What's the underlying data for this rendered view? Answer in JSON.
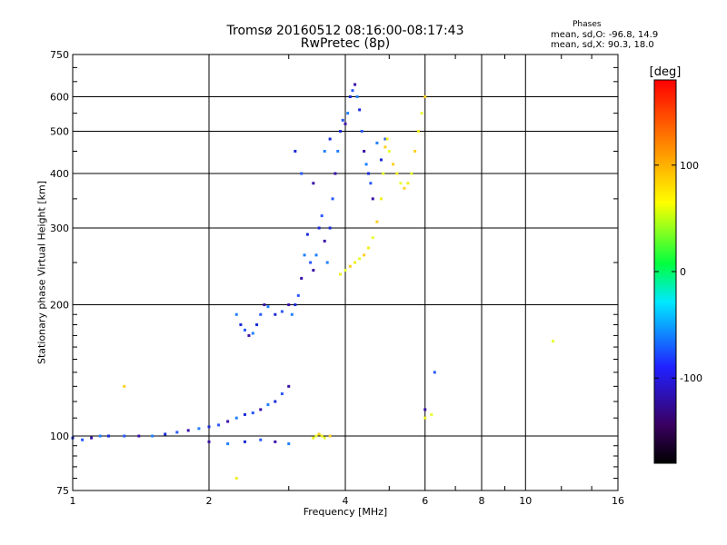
{
  "chart_data": {
    "type": "scatter",
    "title": "Tromsø 20160512 08:16:00-08:17:43",
    "subtitle": "RwPretec (8p)",
    "xlabel": "Frequency [MHz]",
    "ylabel": "Stationary phase Virtual Height [km]",
    "x_scale": "log",
    "y_scale": "log",
    "xlim": [
      1,
      16
    ],
    "ylim": [
      75,
      750
    ],
    "x_ticks": [
      1,
      2,
      4,
      6,
      8,
      10,
      16
    ],
    "y_ticks": [
      75,
      100,
      200,
      300,
      400,
      500,
      600,
      750
    ],
    "grid": true,
    "phase_stats": {
      "title": "Phases",
      "o_line": "mean, sd,O: -96.8, 14.9",
      "x_line": "mean, sd,X: 90.3, 18.0"
    },
    "colorbar": {
      "label": "[deg]",
      "min": -180,
      "max": 180,
      "ticks": [
        100,
        0,
        -100
      ]
    },
    "series": [
      {
        "name": "O",
        "points": [
          [
            1.0,
            99
          ],
          [
            1.05,
            98
          ],
          [
            1.1,
            99
          ],
          [
            1.15,
            100
          ],
          [
            1.2,
            100
          ],
          [
            1.3,
            100
          ],
          [
            1.4,
            100
          ],
          [
            1.5,
            100
          ],
          [
            1.6,
            101
          ],
          [
            1.7,
            102
          ],
          [
            1.8,
            103
          ],
          [
            1.9,
            104
          ],
          [
            2.0,
            105
          ],
          [
            2.1,
            106
          ],
          [
            2.2,
            108
          ],
          [
            2.3,
            110
          ],
          [
            2.4,
            112
          ],
          [
            2.5,
            113
          ],
          [
            2.6,
            115
          ],
          [
            2.7,
            118
          ],
          [
            2.8,
            120
          ],
          [
            2.9,
            125
          ],
          [
            3.0,
            130
          ],
          [
            2.3,
            190
          ],
          [
            2.35,
            180
          ],
          [
            2.4,
            175
          ],
          [
            2.45,
            170
          ],
          [
            2.5,
            172
          ],
          [
            2.55,
            180
          ],
          [
            2.6,
            190
          ],
          [
            2.65,
            200
          ],
          [
            2.7,
            198
          ],
          [
            2.8,
            190
          ],
          [
            2.9,
            193
          ],
          [
            3.0,
            200
          ],
          [
            3.05,
            190
          ],
          [
            3.1,
            200
          ],
          [
            3.15,
            210
          ],
          [
            3.2,
            230
          ],
          [
            3.25,
            260
          ],
          [
            3.3,
            290
          ],
          [
            3.35,
            250
          ],
          [
            3.4,
            240
          ],
          [
            3.45,
            260
          ],
          [
            3.5,
            300
          ],
          [
            3.55,
            320
          ],
          [
            3.6,
            280
          ],
          [
            3.65,
            250
          ],
          [
            3.7,
            300
          ],
          [
            3.75,
            350
          ],
          [
            3.8,
            400
          ],
          [
            3.85,
            450
          ],
          [
            3.9,
            500
          ],
          [
            3.95,
            530
          ],
          [
            4.0,
            520
          ],
          [
            4.05,
            550
          ],
          [
            4.1,
            600
          ],
          [
            4.15,
            620
          ],
          [
            4.2,
            640
          ],
          [
            4.25,
            600
          ],
          [
            4.3,
            560
          ],
          [
            4.35,
            500
          ],
          [
            4.4,
            450
          ],
          [
            4.45,
            420
          ],
          [
            4.5,
            400
          ],
          [
            4.55,
            380
          ],
          [
            4.6,
            350
          ],
          [
            4.7,
            470
          ],
          [
            4.8,
            430
          ],
          [
            4.9,
            480
          ],
          [
            2.0,
            97
          ],
          [
            2.2,
            96
          ],
          [
            2.4,
            97
          ],
          [
            2.6,
            98
          ],
          [
            2.8,
            97
          ],
          [
            3.0,
            96
          ],
          [
            3.1,
            450
          ],
          [
            3.2,
            400
          ],
          [
            3.4,
            380
          ],
          [
            3.6,
            450
          ],
          [
            3.7,
            480
          ],
          [
            6.3,
            140
          ],
          [
            6.0,
            115
          ]
        ]
      },
      {
        "name": "X",
        "points": [
          [
            3.9,
            235
          ],
          [
            4.0,
            240
          ],
          [
            4.1,
            245
          ],
          [
            4.2,
            250
          ],
          [
            4.3,
            255
          ],
          [
            4.4,
            260
          ],
          [
            4.5,
            270
          ],
          [
            4.6,
            285
          ],
          [
            4.7,
            310
          ],
          [
            4.8,
            350
          ],
          [
            4.85,
            400
          ],
          [
            4.9,
            460
          ],
          [
            4.95,
            480
          ],
          [
            5.0,
            450
          ],
          [
            5.1,
            420
          ],
          [
            5.2,
            400
          ],
          [
            5.3,
            380
          ],
          [
            5.4,
            370
          ],
          [
            5.5,
            380
          ],
          [
            5.6,
            400
          ],
          [
            5.7,
            450
          ],
          [
            5.8,
            500
          ],
          [
            5.9,
            550
          ],
          [
            6.0,
            600
          ],
          [
            3.4,
            99
          ],
          [
            3.45,
            100
          ],
          [
            3.5,
            101
          ],
          [
            3.55,
            100
          ],
          [
            3.6,
            99
          ],
          [
            3.7,
            100
          ],
          [
            6.0,
            110
          ],
          [
            6.2,
            112
          ],
          [
            1.3,
            130
          ],
          [
            2.3,
            80
          ],
          [
            11.5,
            165
          ]
        ]
      }
    ]
  }
}
